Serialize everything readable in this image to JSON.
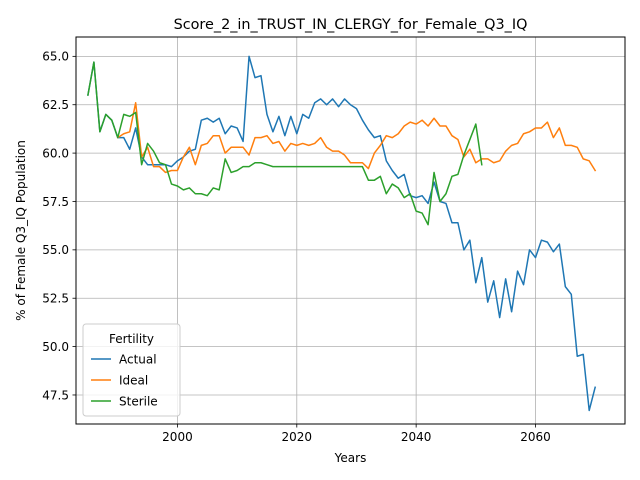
{
  "chart_data": {
    "type": "line",
    "title": "Score_2_in_TRUST_IN_CLERGY_for_Female_Q3_IQ",
    "xlabel": "Years",
    "ylabel": "% of Female Q3_IQ Population",
    "xlim": [
      1983,
      2075
    ],
    "ylim": [
      46.0,
      66.0
    ],
    "xticks": [
      2000,
      2020,
      2040,
      2060
    ],
    "yticks": [
      47.5,
      50.0,
      52.5,
      55.0,
      57.5,
      60.0,
      62.5,
      65.0
    ],
    "ytick_labels": [
      "47.5",
      "50.0",
      "52.5",
      "55.0",
      "57.5",
      "60.0",
      "62.5",
      "65.0"
    ],
    "grid": true,
    "legend": {
      "title": "Fertility",
      "placement": "lower-left"
    },
    "series": [
      {
        "name": "Actual",
        "color": "#1f77b4",
        "x": [
          1985,
          1986,
          1987,
          1988,
          1989,
          1990,
          1991,
          1992,
          1993,
          1994,
          1995,
          1996,
          1997,
          1998,
          1999,
          2000,
          2001,
          2002,
          2003,
          2004,
          2005,
          2006,
          2007,
          2008,
          2009,
          2010,
          2011,
          2012,
          2013,
          2014,
          2015,
          2016,
          2017,
          2018,
          2019,
          2020,
          2021,
          2022,
          2023,
          2024,
          2025,
          2026,
          2027,
          2028,
          2029,
          2030,
          2031,
          2032,
          2033,
          2034,
          2035,
          2036,
          2037,
          2038,
          2039,
          2040,
          2041,
          2042,
          2043,
          2044,
          2045,
          2046,
          2047,
          2048,
          2049,
          2050,
          2051,
          2052,
          2053,
          2054,
          2055,
          2056,
          2057,
          2058,
          2059,
          2060,
          2061,
          2062,
          2063,
          2064,
          2065,
          2066,
          2067,
          2068,
          2069,
          2070
        ],
        "values": [
          63.0,
          64.7,
          61.1,
          62.0,
          61.7,
          60.8,
          60.8,
          60.2,
          61.3,
          59.8,
          59.4,
          59.4,
          59.4,
          59.4,
          59.3,
          59.6,
          59.8,
          60.1,
          60.2,
          61.7,
          61.8,
          61.6,
          61.8,
          61.0,
          61.4,
          61.3,
          60.6,
          65.0,
          63.9,
          64.0,
          62.0,
          61.1,
          61.9,
          60.9,
          61.9,
          61.0,
          62.0,
          61.8,
          62.6,
          62.8,
          62.5,
          62.8,
          62.4,
          62.8,
          62.5,
          62.3,
          61.7,
          61.2,
          60.8,
          60.9,
          59.6,
          59.1,
          58.7,
          58.9,
          57.8,
          57.7,
          57.8,
          57.4,
          58.5,
          57.5,
          57.4,
          56.4,
          56.4,
          55.0,
          55.5,
          53.3,
          54.6,
          52.3,
          53.4,
          51.5,
          53.5,
          51.8,
          53.9,
          53.2,
          55.0,
          54.6,
          55.5,
          55.4,
          54.9,
          55.3,
          53.1,
          52.7,
          49.5,
          49.6,
          46.7,
          47.9
        ]
      },
      {
        "name": "Ideal",
        "color": "#ff7f0e",
        "x": [
          1990,
          1991,
          1992,
          1993,
          1994,
          1995,
          1996,
          1997,
          1998,
          1999,
          2000,
          2001,
          2002,
          2003,
          2004,
          2005,
          2006,
          2007,
          2008,
          2009,
          2010,
          2011,
          2012,
          2013,
          2014,
          2015,
          2016,
          2017,
          2018,
          2019,
          2020,
          2021,
          2022,
          2023,
          2024,
          2025,
          2026,
          2027,
          2028,
          2029,
          2030,
          2031,
          2032,
          2033,
          2034,
          2035,
          2036,
          2037,
          2038,
          2039,
          2040,
          2041,
          2042,
          2043,
          2044,
          2045,
          2046,
          2047,
          2048,
          2049,
          2050,
          2051,
          2052,
          2053,
          2054,
          2055,
          2056,
          2057,
          2058,
          2059,
          2060,
          2061,
          2062,
          2063,
          2064,
          2065,
          2066,
          2067,
          2068,
          2069,
          2070
        ],
        "values": [
          60.8,
          61.0,
          61.1,
          62.6,
          59.8,
          60.3,
          59.3,
          59.3,
          59.0,
          59.1,
          59.1,
          59.8,
          60.3,
          59.4,
          60.4,
          60.5,
          60.9,
          60.9,
          60.0,
          60.3,
          60.3,
          60.3,
          59.9,
          60.8,
          60.8,
          60.9,
          60.5,
          60.6,
          60.1,
          60.5,
          60.4,
          60.5,
          60.4,
          60.5,
          60.8,
          60.3,
          60.1,
          60.1,
          59.9,
          59.5,
          59.5,
          59.5,
          59.2,
          60.0,
          60.4,
          60.9,
          60.8,
          61.0,
          61.4,
          61.6,
          61.5,
          61.7,
          61.4,
          61.8,
          61.4,
          61.4,
          60.9,
          60.7,
          59.8,
          60.2,
          59.5,
          59.7,
          59.7,
          59.5,
          59.6,
          60.1,
          60.4,
          60.5,
          61.0,
          61.1,
          61.3,
          61.3,
          61.6,
          60.8,
          61.3,
          60.4,
          60.4,
          60.3,
          59.7,
          59.6,
          59.1
        ]
      },
      {
        "name": "Sterile",
        "color": "#2ca02c",
        "x": [
          1985,
          1986,
          1987,
          1988,
          1989,
          1990,
          1991,
          1992,
          1993,
          1994,
          1995,
          1996,
          1997,
          1998,
          1999,
          2000,
          2001,
          2002,
          2003,
          2004,
          2005,
          2006,
          2007,
          2008,
          2009,
          2010,
          2011,
          2012,
          2013,
          2014,
          2015,
          2016,
          2017,
          2018,
          2019,
          2020,
          2021,
          2022,
          2023,
          2024,
          2025,
          2026,
          2027,
          2028,
          2029,
          2030,
          2031,
          2032,
          2033,
          2034,
          2035,
          2036,
          2037,
          2038,
          2039,
          2040,
          2041,
          2042,
          2043,
          2044,
          2045,
          2046,
          2047,
          2048,
          2049,
          2050,
          2051
        ],
        "values": [
          63.0,
          64.7,
          61.1,
          62.0,
          61.7,
          60.8,
          62.0,
          61.9,
          62.1,
          59.4,
          60.5,
          60.1,
          59.5,
          59.4,
          58.4,
          58.3,
          58.1,
          58.2,
          57.9,
          57.9,
          57.8,
          58.2,
          58.1,
          59.7,
          59.0,
          59.1,
          59.3,
          59.3,
          59.5,
          59.5,
          59.4,
          59.3,
          59.3,
          59.3,
          59.3,
          59.3,
          59.3,
          59.3,
          59.3,
          59.3,
          59.3,
          59.3,
          59.3,
          59.3,
          59.3,
          59.3,
          59.3,
          58.6,
          58.6,
          58.8,
          57.9,
          58.4,
          58.2,
          57.7,
          57.9,
          57.0,
          56.9,
          56.3,
          59.0,
          57.5,
          57.9,
          58.8,
          58.9,
          59.9,
          60.7,
          61.5,
          59.4
        ]
      }
    ]
  }
}
